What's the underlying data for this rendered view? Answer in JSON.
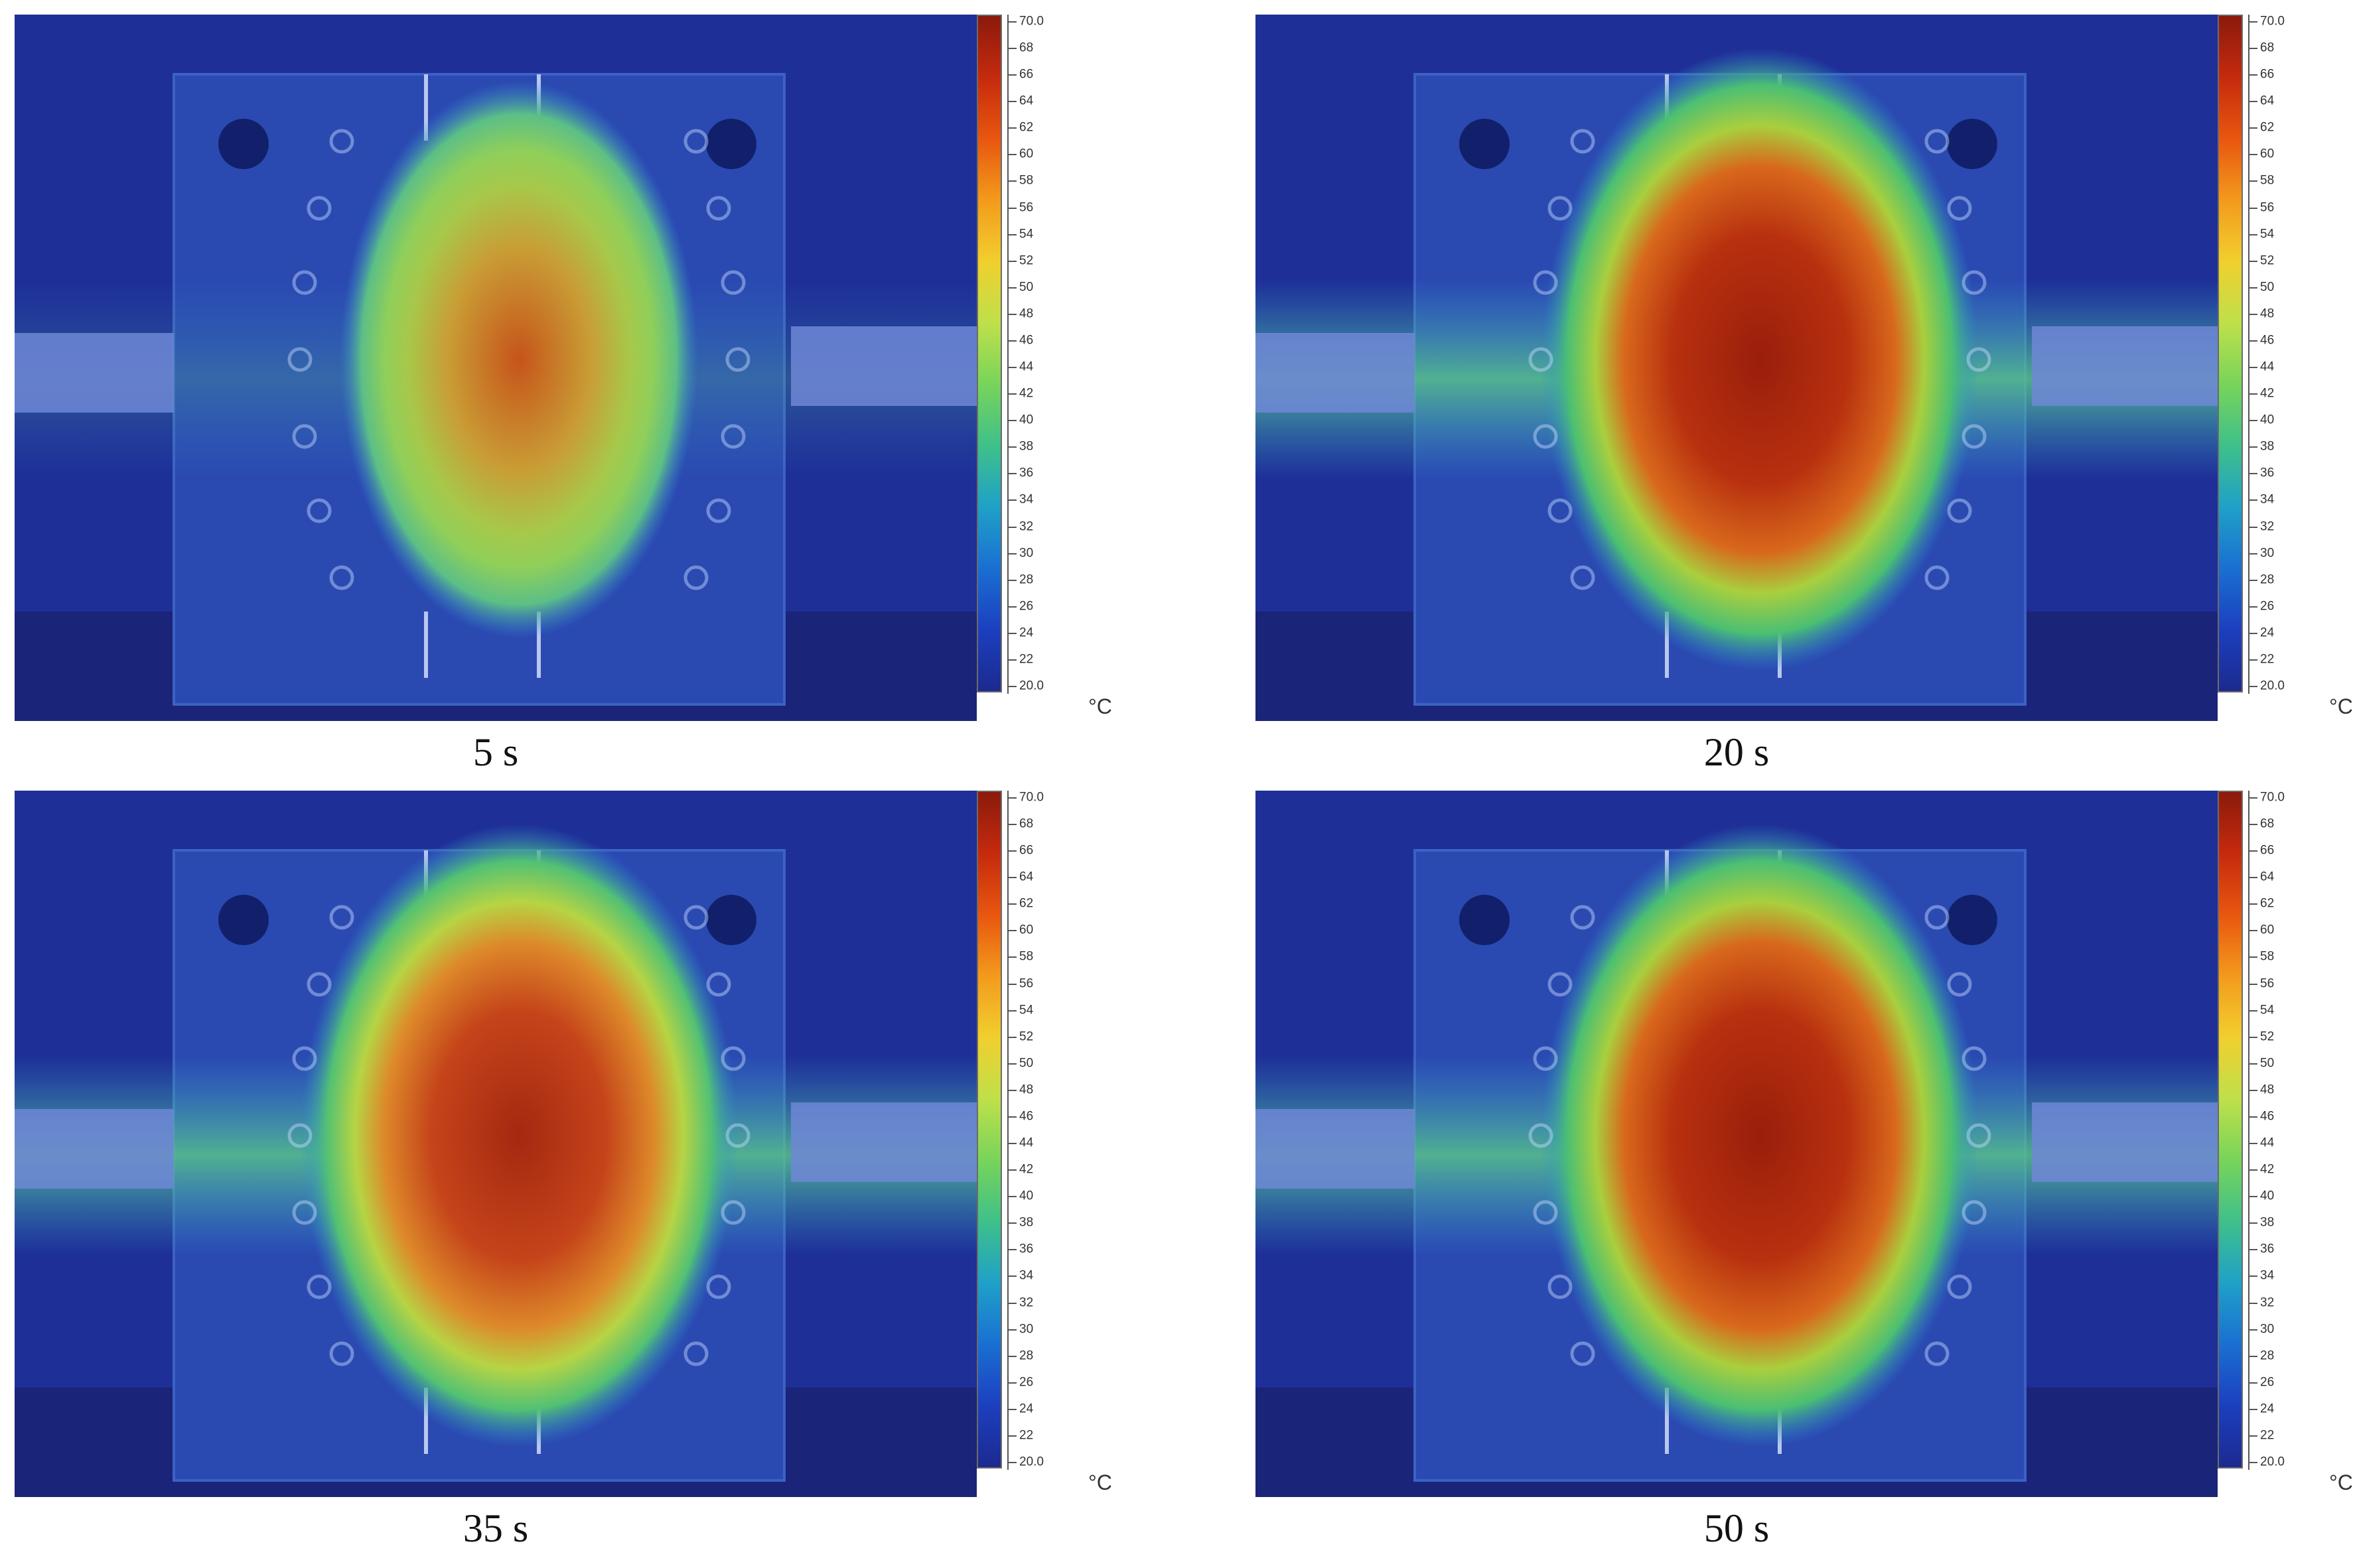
{
  "colorbar": {
    "max_label": "70.0",
    "min_label": "20.0",
    "tick_labels": [
      "68",
      "66",
      "64",
      "62",
      "60",
      "58",
      "56",
      "54",
      "52",
      "50",
      "48",
      "46",
      "44",
      "42",
      "40",
      "38",
      "36",
      "34",
      "32",
      "30",
      "28",
      "26",
      "24",
      "22"
    ],
    "unit": "°C",
    "gradient_colors": [
      "#8b1a0c",
      "#c52a0e",
      "#e8560f",
      "#f39a1c",
      "#f1cf2e",
      "#bfe04a",
      "#78d45a",
      "#3fc08a",
      "#1fa1c8",
      "#1a6fd2",
      "#1c3fbf",
      "#1c2a8e"
    ]
  },
  "panels": [
    {
      "caption": "5 s",
      "hot_level": 0.45
    },
    {
      "caption": "20 s",
      "hot_level": 1.0
    },
    {
      "caption": "35 s",
      "hot_level": 0.9
    },
    {
      "caption": "50 s",
      "hot_level": 1.0
    }
  ]
}
